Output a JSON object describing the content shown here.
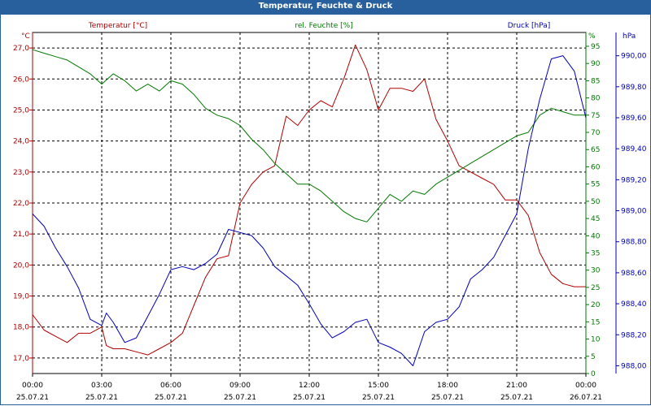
{
  "title": "Temperatur, Feuchte & Druck",
  "colors": {
    "temperature": "#b00000",
    "humidity": "#007800",
    "pressure": "#0000b4",
    "frame": "#27609d",
    "grid": "#000000"
  },
  "chart_data": {
    "type": "line",
    "grid": true,
    "x_ticks": [
      {
        "time": "00:00",
        "date": "25.07.21"
      },
      {
        "time": "03:00",
        "date": "25.07.21"
      },
      {
        "time": "06:00",
        "date": "25.07.21"
      },
      {
        "time": "09:00",
        "date": "25.07.21"
      },
      {
        "time": "12:00",
        "date": "25.07.21"
      },
      {
        "time": "15:00",
        "date": "25.07.21"
      },
      {
        "time": "18:00",
        "date": "25.07.21"
      },
      {
        "time": "21:00",
        "date": "25.07.21"
      },
      {
        "time": "00:00",
        "date": "26.07.21"
      }
    ],
    "axes": {
      "temperature": {
        "label": "Temperatur [°C]",
        "unit": "°C",
        "range": [
          16.5,
          27.5
        ],
        "ticks": [
          "17,0",
          "18,0",
          "19,0",
          "20,0",
          "21,0",
          "22,0",
          "23,0",
          "24,0",
          "25,0",
          "26,0",
          "27,0"
        ]
      },
      "humidity": {
        "label": "rel. Feuchte [%]",
        "unit": "%",
        "range": [
          0,
          99
        ],
        "ticks": [
          "0",
          "5",
          "10",
          "15",
          "20",
          "25",
          "30",
          "35",
          "40",
          "45",
          "50",
          "55",
          "60",
          "65",
          "70",
          "75",
          "80",
          "85",
          "90",
          "95"
        ]
      },
      "pressure": {
        "label": "Druck [hPa]",
        "unit": "hPa",
        "range": [
          987.95,
          990.15
        ],
        "ticks": [
          "988,00",
          "988,20",
          "988,40",
          "988,60",
          "988,80",
          "989,00",
          "989,20",
          "989,40",
          "989,60",
          "989,80",
          "990,00"
        ]
      }
    },
    "series": [
      {
        "key": "temperature",
        "name": "Temperatur [°C]",
        "x_hours": [
          0,
          0.5,
          1,
          1.5,
          2,
          2.5,
          3,
          3.2,
          3.5,
          4,
          4.5,
          5,
          5.5,
          6,
          6.5,
          7,
          7.5,
          8,
          8.5,
          9,
          9.5,
          10,
          10.5,
          11,
          11.5,
          12,
          12.5,
          13,
          13.5,
          14,
          14.5,
          15,
          15.5,
          16,
          16.5,
          17,
          17.5,
          18,
          18.5,
          19,
          19.5,
          20,
          20.5,
          21,
          21.5,
          22,
          22.5,
          23,
          23.5,
          24
        ],
        "values": [
          18.4,
          17.9,
          17.7,
          17.5,
          17.8,
          17.8,
          18.0,
          17.4,
          17.3,
          17.3,
          17.2,
          17.1,
          17.3,
          17.5,
          17.8,
          18.7,
          19.6,
          20.2,
          20.3,
          22.0,
          22.6,
          23.0,
          23.2,
          24.8,
          24.5,
          25.0,
          25.3,
          25.1,
          26.0,
          27.1,
          26.3,
          25.0,
          25.7,
          25.7,
          25.6,
          26.0,
          24.7,
          24.0,
          23.2,
          23.0,
          22.8,
          22.6,
          22.1,
          22.1,
          21.6,
          20.4,
          19.7,
          19.4,
          19.3,
          19.3
        ]
      },
      {
        "key": "humidity",
        "name": "rel. Feuchte [%]",
        "x_hours": [
          0,
          0.5,
          1,
          1.5,
          2,
          2.5,
          3,
          3.5,
          4,
          4.5,
          5,
          5.5,
          6,
          6.5,
          7,
          7.5,
          8,
          8.5,
          9,
          9.5,
          10,
          10.5,
          11,
          11.5,
          12,
          12.5,
          13,
          13.5,
          14,
          14.5,
          15,
          15.5,
          16,
          16.5,
          17,
          17.5,
          18,
          18.5,
          19,
          19.5,
          20,
          20.5,
          21,
          21.5,
          22,
          22.5,
          23,
          23.5,
          24
        ],
        "values": [
          94,
          93,
          92,
          91,
          89,
          87,
          84,
          87,
          85,
          82,
          84,
          82,
          85,
          84,
          81,
          77,
          75,
          74,
          72,
          68,
          65,
          61,
          58,
          55,
          55,
          53,
          50,
          47,
          45,
          44,
          48,
          52,
          50,
          53,
          52,
          55,
          57,
          59,
          61,
          63,
          65,
          67,
          69,
          70,
          75,
          77,
          76,
          75,
          75
        ]
      },
      {
        "key": "pressure",
        "name": "Druck [hPa]",
        "x_hours": [
          0,
          0.5,
          1,
          1.5,
          2,
          2.5,
          3,
          3.2,
          3.5,
          4,
          4.5,
          5,
          5.5,
          6,
          6.5,
          7,
          7.5,
          8,
          8.5,
          9,
          9.5,
          10,
          10.5,
          11,
          11.5,
          12,
          12.5,
          13,
          13.5,
          14,
          14.5,
          15,
          15.5,
          16,
          16.5,
          17,
          17.5,
          18,
          18.5,
          19,
          19.5,
          20,
          20.5,
          21,
          21.5,
          22,
          22.5,
          23,
          23.5,
          24
        ],
        "values": [
          988.98,
          988.9,
          988.76,
          988.64,
          988.5,
          988.3,
          988.26,
          988.34,
          988.28,
          988.15,
          988.18,
          988.32,
          988.46,
          988.62,
          988.64,
          988.62,
          988.66,
          988.72,
          988.88,
          988.86,
          988.84,
          988.76,
          988.64,
          988.58,
          988.52,
          988.4,
          988.27,
          988.18,
          988.22,
          988.28,
          988.3,
          988.15,
          988.12,
          988.08,
          988.0,
          988.22,
          988.28,
          988.3,
          988.38,
          988.56,
          988.62,
          988.7,
          988.84,
          988.98,
          989.4,
          989.72,
          989.98,
          990.0,
          989.9,
          989.6
        ]
      }
    ]
  }
}
